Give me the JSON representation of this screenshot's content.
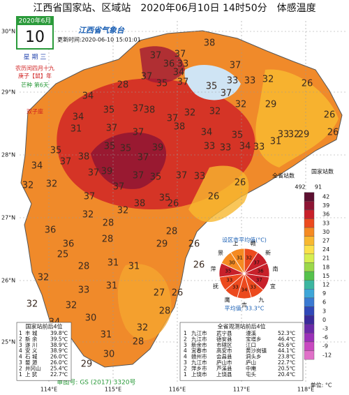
{
  "header": {
    "title": "江西省国家站、区域站　2020年06月10日 14时50分　体感温度",
    "logo": "江西省气象台",
    "update": "更新时间:2020-06-10 15:01:01"
  },
  "date_box": {
    "month": "2020年6月",
    "day": "10",
    "weekday": "星 期 三",
    "lunar": "农历闰四月十九",
    "ganzhi": "庚子【鼠】年",
    "solar_term": "芒种 第6天",
    "zodiac": "双子座"
  },
  "axes": {
    "lat": [
      "30°N",
      "29°N",
      "28°N",
      "27°N",
      "26°N",
      "25°N"
    ],
    "lon": [
      "114°E",
      "115°E",
      "116°E",
      "117°E",
      "118°E"
    ]
  },
  "stations": [
    "38",
    "37",
    "37",
    "36",
    "33",
    "34",
    "37",
    "37",
    "37",
    "35",
    "35",
    "37",
    "32",
    "33",
    "33",
    "26",
    "34",
    "28",
    "37",
    "38",
    "37",
    "32",
    "29",
    "26",
    "34",
    "38",
    "32",
    "32",
    "35",
    "31",
    "37",
    "37",
    "34",
    "35",
    "33",
    "32",
    "29",
    "26",
    "35",
    "35",
    "39",
    "33",
    "33",
    "34",
    "33",
    "31",
    "34",
    "37",
    "38",
    "35",
    "37",
    "37",
    "39",
    "37",
    "35",
    "37",
    "33",
    "26",
    "32",
    "32",
    "37",
    "37",
    "38",
    "35",
    "26",
    "36",
    "28",
    "26",
    "36",
    "32",
    "32",
    "28",
    "28",
    "29",
    "26",
    "25",
    "31",
    "28",
    "31",
    "26",
    "26",
    "32",
    "31",
    "32",
    "28",
    "30",
    "31",
    "32",
    "32",
    "34",
    "33",
    "30",
    "29",
    "30",
    "28",
    "27"
  ],
  "legend": {
    "headers": [
      "全省站数",
      "国家站数"
    ],
    "counts": [
      "492",
      "91"
    ],
    "ticks": [
      42,
      39,
      36,
      33,
      30,
      27,
      24,
      21,
      18,
      15,
      12,
      9,
      6,
      3,
      0,
      -3,
      -6,
      -9,
      -12
    ],
    "colors": [
      "#5c1030",
      "#8e1534",
      "#c8202a",
      "#ec4a1e",
      "#f58a22",
      "#f8b830",
      "#fbe14a",
      "#d6ee50",
      "#9bd84a",
      "#55c24c",
      "#3cb6a0",
      "#3ea6d8",
      "#3a7ad2",
      "#3048b8",
      "#3a2a9a",
      "#6a2aa8",
      "#9a30b8",
      "#c848c0",
      "#e070c8"
    ],
    "unit": "单位: °C"
  },
  "pie": {
    "title": "设区市平均值(°C)",
    "cities": [
      "赣",
      "新",
      "南",
      "宜",
      "九",
      "吉",
      "鹰",
      "抚",
      "萍",
      "景",
      "上"
    ],
    "values": [
      32,
      37,
      36,
      37,
      33,
      34,
      33,
      33,
      35,
      30,
      31
    ],
    "average": "平均值: 33.3°C"
  },
  "national_table": {
    "title": "国家站前后4位",
    "rows": [
      [
        "1",
        "丰 城",
        "39.8℃"
      ],
      [
        "2",
        "新 余",
        "39.5℃"
      ],
      [
        "3",
        "遂 川",
        "38.9℃"
      ],
      [
        "4",
        "安 义",
        "38.9℃"
      ],
      [
        "4",
        "石 城",
        "26.0℃"
      ],
      [
        "3",
        "婺 源",
        "26.0℃"
      ],
      [
        "2",
        "井冈山",
        "25.4℃"
      ],
      [
        "1",
        "上 犹",
        "22.7℃"
      ]
    ]
  },
  "all_table": {
    "title": "全省观测站前后4位",
    "rows": [
      [
        "1",
        "九江市",
        "武宁县",
        "漫溪",
        "52.3℃"
      ],
      [
        "2",
        "九江市",
        "德安县",
        "宝塔乡",
        "46.4℃"
      ],
      [
        "3",
        "新余市",
        "市辖区",
        "江口",
        "45.6℃"
      ],
      [
        "4",
        "宜春市",
        "高安市",
        "黄沙岗镇",
        "44.1℃"
      ],
      [
        "4",
        "赣州市",
        "会昌县",
        "洞头乡",
        "23.8℃"
      ],
      [
        "3",
        "九江市",
        "庐山市",
        "庐山",
        "22.7℃"
      ],
      [
        "2",
        "萍乡市",
        "芦溪县",
        "中庵",
        "20.5℃"
      ],
      [
        "1",
        "上饶市",
        "上饶县",
        "屯头",
        "20.4℃"
      ]
    ]
  },
  "approval": "审图号: GS (2017) 3320号"
}
